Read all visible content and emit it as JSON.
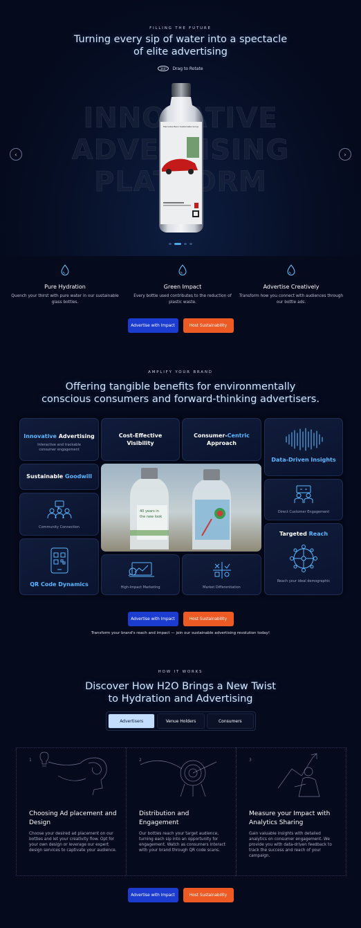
{
  "hero": {
    "eyebrow": "FILLING THE FUTURE",
    "headline_line1": "Turning every sip of water into a spectacle",
    "headline_line2": "of elite advertising",
    "rotate_icon_text": "360°",
    "rotate_label": "Drag to Rotate",
    "background_words": [
      "INNOVATIVE",
      "ADVERTISING",
      "PLATFORM"
    ],
    "prev_arrow": "‹",
    "next_arrow": "›",
    "slide_dots": 5,
    "active_dot": 2
  },
  "features": [
    {
      "title": "Pure Hydration",
      "text": "Quench your thirst with pure water in our sustainable glass bottles."
    },
    {
      "title": "Green Impact",
      "text": "Every bottle used contributes to the reduction of plastic waste."
    },
    {
      "title": "Advertise Creatively",
      "text": "Transform how you connect with audiences through our bottle ads."
    }
  ],
  "buttons": {
    "advertise": "Advertise with Impact",
    "host": "Host Sustainability"
  },
  "benefits": {
    "eyebrow": "AMPLIFY YOUR BRAND",
    "headline_line1": "Offering tangible benefits for environmentally",
    "headline_line2": "conscious consumers and forward-thinking advertisers.",
    "cards": {
      "innovative": {
        "title_hl": "Innovative",
        "title_rest": " Advertising",
        "sub": "Interactive and trackable consumer engagement"
      },
      "cost": {
        "title": "Cost-Effective Visibility"
      },
      "consumer": {
        "title_a": "Consumer-",
        "title_hl": "Centric",
        "title_b": "Approach"
      },
      "data": {
        "title": "Data-Driven Insights"
      },
      "goodwill": {
        "title_rest": "Sustainable ",
        "title_hl": "Goodwill"
      },
      "community": {
        "sub": "Community Connection"
      },
      "direct": {
        "sub": "Direct Customer Engagement"
      },
      "targeted": {
        "title_rest": "Targeted ",
        "title_hl": "Reach",
        "sub": "Reach your ideal demographic"
      },
      "qr": {
        "title": "QR Code Dynamics"
      },
      "marketing": {
        "sub": "High-Impact Marketing"
      },
      "market": {
        "sub": "Market Differentiation"
      }
    },
    "tagline": "Transform your brand's reach and impact — join our sustainable advertising revolution today!"
  },
  "how": {
    "eyebrow": "HOW IT WORKS",
    "headline_line1": "Discover How H2O Brings a New Twist",
    "headline_line2": "to Hydration and Advertising",
    "tabs": [
      "Advertisers",
      "Venue Holders",
      "Consumers"
    ],
    "steps": [
      {
        "num": "1",
        "title": "Choosing Ad placement and Design",
        "text": "Choose your desired ad placement on our bottles and let your creativity flow. Opt for your own design or leverage our expert design services to captivate your audience."
      },
      {
        "num": "2",
        "title": "Distribution and Engagement",
        "text": "Our bottles reach your target audience, turning each sip into an opportunity for engagement. Watch as consumers interact with your brand through QR code scans."
      },
      {
        "num": "3",
        "title": "Measure your Impact with Analytics Sharing",
        "text": "Gain valuable insights with detailed analytics on consumer engagement. We provide you with data-driven feedback to track the success and reach of your campaign."
      }
    ]
  },
  "colors": {
    "accent": "#5db6ff",
    "primary_button": "#1c3bcf",
    "secondary_button": "#ee5a24",
    "background": "#050a1c"
  }
}
